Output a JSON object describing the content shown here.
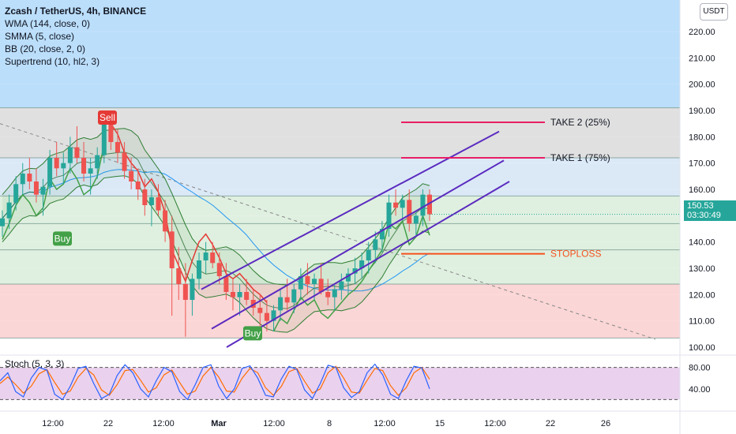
{
  "header": {
    "symbol_line": "Zcash / TetherUS, 4h, BINANCE",
    "indicators": [
      "WMA (144, close, 0)",
      "SMMA (5, close)",
      "BB (20, close, 2, 0)",
      "Supertrend (10, hl2, 3)"
    ],
    "currency_button": "USDT"
  },
  "price_tag": {
    "price": "150.53",
    "countdown": "03:30:49"
  },
  "stoch": {
    "label": "Stoch (5, 3, 3)",
    "ticks": [
      "80.00",
      "40.00"
    ],
    "upper": 80,
    "lower": 20
  },
  "colors": {
    "up": "#26a69a",
    "down": "#ef5350",
    "supertrend_up": "#43a047",
    "supertrend_down": "#e53935",
    "channel": "#5b2bbf",
    "take": "#e91e63",
    "stoploss": "#f4511e",
    "wma": "#2196f3",
    "bb": "#2e7d32",
    "k_line": "#2962ff",
    "d_line": "#ff6d00",
    "stoch_bg": "#e1bee7"
  },
  "chart_data": {
    "type": "candlestick",
    "title": "Zcash / TetherUS, 4h, BINANCE",
    "y_axis": {
      "ticks": [
        100,
        110,
        120,
        130,
        140,
        150,
        160,
        170,
        180,
        190,
        200,
        210,
        220
      ],
      "range": [
        97,
        232
      ],
      "tick_labels": [
        "100.00",
        "110.00",
        "120.00",
        "130.00",
        "140.00",
        "150.00",
        "160.00",
        "170.00",
        "180.00",
        "190.00",
        "200.00",
        "210.00",
        "220.00"
      ]
    },
    "x_axis": {
      "tick_labels": [
        "12:00",
        "22",
        "12:00",
        "Mar",
        "12:00",
        "8",
        "12:00",
        "15",
        "12:00",
        "22",
        "26"
      ]
    },
    "last_price": 150.53,
    "price_zones": [
      {
        "from": 191,
        "to": 232,
        "color": "#bbdefb"
      },
      {
        "from": 172,
        "to": 191,
        "color": "#e0e0e0"
      },
      {
        "from": 157.5,
        "to": 172,
        "color": "#dbe9f7"
      },
      {
        "from": 124,
        "to": 157.5,
        "color": "#dff0e0"
      },
      {
        "from": 103.5,
        "to": 124,
        "color": "#fbd6d6"
      }
    ],
    "horizontal_levels": [
      191,
      172,
      157.5,
      147,
      137,
      124,
      103.5
    ],
    "annotations": [
      {
        "text": "TAKE 2 (25%)",
        "price": 185.5,
        "kind": "take"
      },
      {
        "text": "TAKE 1 (75%)",
        "price": 172,
        "kind": "take"
      },
      {
        "text": "STOPLOSS",
        "price": 135.5,
        "kind": "stoploss"
      }
    ],
    "signals": [
      {
        "text": "Sell",
        "type": "sell",
        "price": 187
      },
      {
        "text": "Buy",
        "type": "buy",
        "price": 141
      },
      {
        "text": "Buy",
        "type": "buy",
        "price": 105
      }
    ],
    "channel_lines": [
      {
        "from": 122,
        "to": 182
      },
      {
        "from": 107,
        "to": 171
      },
      {
        "from": 100,
        "to": 163
      }
    ],
    "trend_line": {
      "from": 185,
      "to": 103
    },
    "candles_ohlc_series": [
      [
        146,
        152,
        142,
        149
      ],
      [
        149,
        158,
        145,
        155
      ],
      [
        155,
        165,
        152,
        162
      ],
      [
        162,
        170,
        158,
        166
      ],
      [
        166,
        172,
        160,
        163
      ],
      [
        163,
        168,
        155,
        158
      ],
      [
        158,
        164,
        150,
        161
      ],
      [
        161,
        175,
        158,
        172
      ],
      [
        172,
        178,
        165,
        168
      ],
      [
        168,
        174,
        162,
        170
      ],
      [
        170,
        180,
        166,
        176
      ],
      [
        176,
        184,
        170,
        172
      ],
      [
        172,
        178,
        163,
        166
      ],
      [
        166,
        172,
        158,
        168
      ],
      [
        168,
        176,
        164,
        173
      ],
      [
        173,
        190,
        170,
        185
      ],
      [
        185,
        188,
        175,
        178
      ],
      [
        178,
        183,
        170,
        174
      ],
      [
        174,
        178,
        164,
        167
      ],
      [
        167,
        172,
        160,
        163
      ],
      [
        163,
        168,
        156,
        160
      ],
      [
        160,
        164,
        150,
        154
      ],
      [
        154,
        160,
        146,
        157
      ],
      [
        157,
        162,
        150,
        152
      ],
      [
        152,
        156,
        140,
        144
      ],
      [
        144,
        150,
        112,
        130
      ],
      [
        130,
        138,
        118,
        124
      ],
      [
        124,
        132,
        104,
        118
      ],
      [
        118,
        128,
        112,
        126
      ],
      [
        126,
        136,
        122,
        133
      ],
      [
        133,
        140,
        128,
        136
      ],
      [
        136,
        140,
        130,
        132
      ],
      [
        132,
        136,
        124,
        127
      ],
      [
        127,
        132,
        118,
        121
      ],
      [
        121,
        126,
        114,
        119
      ],
      [
        119,
        124,
        112,
        121
      ],
      [
        121,
        126,
        116,
        118
      ],
      [
        118,
        122,
        112,
        115
      ],
      [
        115,
        120,
        108,
        113
      ],
      [
        113,
        118,
        106,
        110
      ],
      [
        110,
        116,
        106,
        114
      ],
      [
        114,
        122,
        110,
        119
      ],
      [
        119,
        126,
        114,
        117
      ],
      [
        117,
        124,
        113,
        122
      ],
      [
        122,
        130,
        118,
        127
      ],
      [
        127,
        132,
        120,
        124
      ],
      [
        124,
        128,
        118,
        126
      ],
      [
        126,
        132,
        120,
        121
      ],
      [
        121,
        126,
        116,
        119
      ],
      [
        119,
        124,
        114,
        122
      ],
      [
        122,
        128,
        118,
        125
      ],
      [
        125,
        130,
        120,
        128
      ],
      [
        128,
        134,
        124,
        130
      ],
      [
        130,
        136,
        126,
        133
      ],
      [
        133,
        140,
        128,
        137
      ],
      [
        137,
        144,
        132,
        141
      ],
      [
        141,
        148,
        136,
        145
      ],
      [
        145,
        158,
        142,
        155
      ],
      [
        155,
        160,
        150,
        153
      ],
      [
        153,
        158,
        148,
        156
      ],
      [
        156,
        160,
        144,
        147
      ],
      [
        147,
        152,
        142,
        150
      ],
      [
        150,
        160,
        146,
        158
      ],
      [
        158,
        160,
        148,
        150.53
      ]
    ],
    "stoch_k_values": [
      55,
      70,
      35,
      25,
      60,
      80,
      75,
      30,
      20,
      45,
      78,
      82,
      50,
      22,
      30,
      65,
      85,
      70,
      40,
      25,
      55,
      80,
      72,
      35,
      20,
      48,
      80,
      85,
      45,
      22,
      40,
      78,
      83,
      60,
      28,
      25,
      58,
      82,
      76,
      38,
      22,
      50,
      84,
      80,
      42,
      24,
      35,
      70,
      86,
      66,
      30,
      22,
      55,
      82,
      79,
      40
    ],
    "stoch_d_values": [
      50,
      62,
      48,
      32,
      45,
      68,
      76,
      52,
      30,
      36,
      62,
      78,
      66,
      38,
      28,
      48,
      74,
      76,
      56,
      34,
      42,
      66,
      75,
      52,
      30,
      36,
      64,
      80,
      62,
      36,
      34,
      60,
      78,
      70,
      42,
      28,
      44,
      72,
      78,
      54,
      32,
      40,
      70,
      82,
      60,
      34,
      32,
      56,
      78,
      74,
      46,
      28,
      42,
      70,
      80,
      58
    ]
  }
}
